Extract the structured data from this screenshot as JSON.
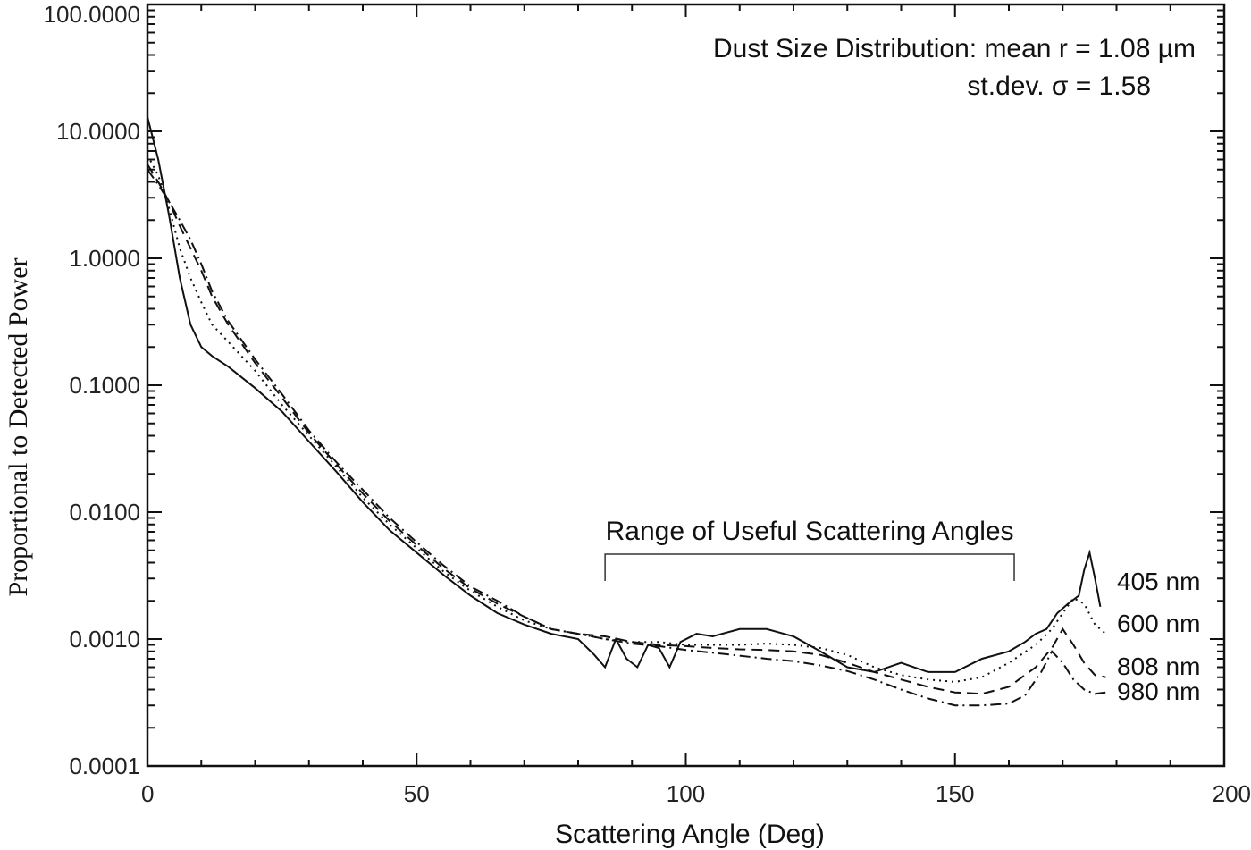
{
  "chart_data": {
    "type": "line",
    "xlabel": "Scattering Angle (Deg)",
    "ylabel": "Proportional to Detected Power",
    "xlim": [
      0,
      200
    ],
    "ylim": [
      0.0001,
      100
    ],
    "yscale": "log",
    "grid": false,
    "x_ticks": [
      0,
      50,
      100,
      150,
      200
    ],
    "x_tick_labels": [
      "0",
      "50",
      "100",
      "150",
      "200"
    ],
    "y_ticks": [
      0.0001,
      0.001,
      0.01,
      0.1,
      1,
      10,
      100
    ],
    "y_tick_labels": [
      "0.0001",
      "0.0010",
      "0.0100",
      "0.1000",
      "1.0000",
      "10.0000",
      "100.0000"
    ],
    "annotation_line1": "Dust Size Distribution:   mean r = 1.08 µm",
    "annotation_line2": "st.dev. σ  = 1.58",
    "range_label": "Range of Useful Scattering Angles",
    "range_bracket": [
      85,
      161
    ],
    "series": [
      {
        "name": "405 nm",
        "style": "solid",
        "x": [
          0,
          2,
          4,
          6,
          8,
          10,
          12,
          15,
          20,
          25,
          30,
          35,
          40,
          45,
          50,
          55,
          60,
          65,
          70,
          75,
          80,
          83,
          85,
          87,
          89,
          91,
          93,
          95,
          97,
          99,
          102,
          105,
          110,
          115,
          120,
          125,
          130,
          135,
          140,
          145,
          150,
          155,
          160,
          163,
          165,
          167,
          169,
          171,
          173,
          174,
          175,
          176,
          177
        ],
        "y": [
          13,
          6,
          2.2,
          0.7,
          0.3,
          0.2,
          0.17,
          0.14,
          0.095,
          0.062,
          0.036,
          0.021,
          0.012,
          0.0072,
          0.0048,
          0.0032,
          0.0022,
          0.0016,
          0.0013,
          0.0011,
          0.001,
          0.00075,
          0.0006,
          0.001,
          0.0007,
          0.0006,
          0.0009,
          0.00085,
          0.0006,
          0.00095,
          0.0011,
          0.00105,
          0.0012,
          0.0012,
          0.00105,
          0.0008,
          0.0006,
          0.00055,
          0.00065,
          0.00055,
          0.00055,
          0.0007,
          0.0008,
          0.00095,
          0.0011,
          0.0012,
          0.0016,
          0.0019,
          0.0022,
          0.0035,
          0.0048,
          0.003,
          0.0018
        ]
      },
      {
        "name": "600 nm",
        "style": "dotted",
        "x": [
          0,
          2,
          4,
          6,
          8,
          10,
          12,
          15,
          20,
          25,
          30,
          35,
          40,
          45,
          50,
          55,
          60,
          65,
          70,
          75,
          80,
          85,
          90,
          95,
          100,
          105,
          110,
          115,
          120,
          125,
          130,
          135,
          140,
          145,
          150,
          155,
          160,
          165,
          168,
          170,
          172,
          174,
          176,
          178
        ],
        "y": [
          6.5,
          4.5,
          2.5,
          1.2,
          0.7,
          0.45,
          0.3,
          0.22,
          0.13,
          0.07,
          0.04,
          0.023,
          0.013,
          0.008,
          0.0052,
          0.0034,
          0.0024,
          0.0018,
          0.0014,
          0.0012,
          0.0011,
          0.001,
          0.00095,
          0.00095,
          0.0009,
          0.0009,
          0.0009,
          0.00092,
          0.0009,
          0.00085,
          0.00075,
          0.0006,
          0.00052,
          0.00048,
          0.00046,
          0.0005,
          0.00065,
          0.0009,
          0.0012,
          0.0016,
          0.0021,
          0.0019,
          0.0013,
          0.0011
        ]
      },
      {
        "name": "808 nm",
        "style": "dashed",
        "x": [
          0,
          2,
          4,
          6,
          8,
          10,
          12,
          15,
          20,
          25,
          30,
          35,
          40,
          45,
          50,
          55,
          60,
          65,
          70,
          75,
          80,
          85,
          90,
          95,
          100,
          105,
          110,
          115,
          120,
          125,
          130,
          135,
          140,
          145,
          150,
          155,
          160,
          165,
          168,
          170,
          172,
          174,
          176,
          178
        ],
        "y": [
          5.5,
          4,
          2.8,
          1.8,
          1.2,
          0.8,
          0.5,
          0.3,
          0.15,
          0.08,
          0.042,
          0.024,
          0.014,
          0.0085,
          0.0055,
          0.0036,
          0.0025,
          0.0019,
          0.0015,
          0.0012,
          0.0011,
          0.00105,
          0.00095,
          0.0009,
          0.00088,
          0.00085,
          0.00083,
          0.00082,
          0.0008,
          0.00075,
          0.00065,
          0.00055,
          0.00048,
          0.00042,
          0.00038,
          0.00037,
          0.00042,
          0.0006,
          0.00085,
          0.0012,
          0.0009,
          0.00065,
          0.00052,
          0.0005
        ]
      },
      {
        "name": "980 nm",
        "style": "dashdot",
        "x": [
          0,
          2,
          4,
          6,
          8,
          10,
          12,
          15,
          20,
          25,
          30,
          35,
          40,
          45,
          50,
          55,
          60,
          65,
          70,
          75,
          80,
          85,
          90,
          95,
          100,
          105,
          110,
          115,
          120,
          125,
          130,
          135,
          140,
          145,
          150,
          155,
          160,
          163,
          166,
          168,
          170,
          172,
          174,
          176,
          178
        ],
        "y": [
          5,
          3.8,
          2.8,
          2,
          1.4,
          0.9,
          0.55,
          0.32,
          0.16,
          0.085,
          0.044,
          0.025,
          0.015,
          0.009,
          0.0058,
          0.0038,
          0.0026,
          0.002,
          0.0015,
          0.0012,
          0.0011,
          0.001,
          0.00092,
          0.00088,
          0.00082,
          0.00078,
          0.00074,
          0.0007,
          0.00067,
          0.00062,
          0.00056,
          0.00048,
          0.0004,
          0.00034,
          0.0003,
          0.0003,
          0.00031,
          0.00036,
          0.00055,
          0.0008,
          0.00065,
          0.00048,
          0.0004,
          0.00037,
          0.00038
        ]
      }
    ]
  },
  "colors": {
    "line": "#111111",
    "frame": "#111111",
    "background": "#ffffff"
  }
}
